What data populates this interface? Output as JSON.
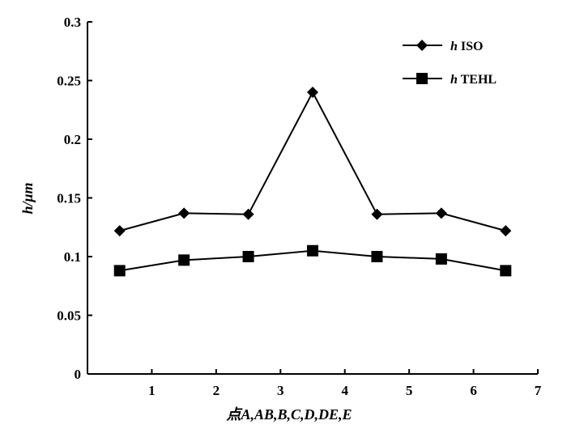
{
  "chart_data": {
    "type": "line",
    "xlabel": "点A,AB,B,C,D,DE,E",
    "ylabel": "h/μm",
    "xlim": [
      0,
      7
    ],
    "ylim": [
      0,
      0.3
    ],
    "xticks": [
      "1",
      "2",
      "3",
      "4",
      "5",
      "6",
      "7"
    ],
    "yticks": [
      "0",
      "0.05",
      "0.1",
      "0.15",
      "0.2",
      "0.25",
      "0.3"
    ],
    "x": [
      0.5,
      1.5,
      2.5,
      3.5,
      4.5,
      5.5,
      6.5
    ],
    "series": [
      {
        "name": "h ISO",
        "values": [
          0.122,
          0.137,
          0.136,
          0.24,
          0.136,
          0.137,
          0.122
        ],
        "marker": "diamond",
        "color": "#000000"
      },
      {
        "name": "h TEHL",
        "values": [
          0.088,
          0.097,
          0.1,
          0.105,
          0.1,
          0.098,
          0.088
        ],
        "marker": "square",
        "color": "#000000"
      }
    ],
    "legend_position": "top-right",
    "grid": false
  }
}
